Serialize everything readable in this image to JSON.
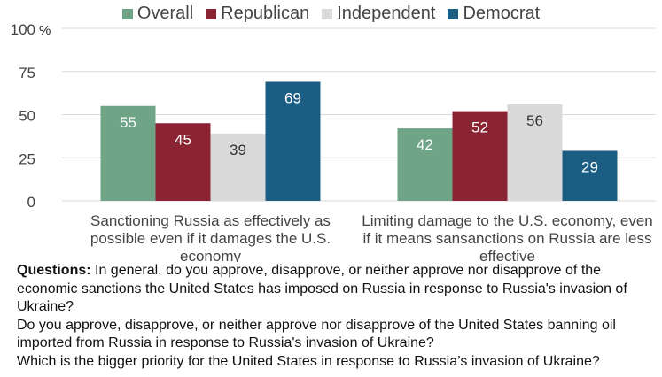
{
  "chart_data": {
    "type": "bar",
    "categories": [
      "Sanctioning Russia as effectively as possible even if it damages the U.S. economy",
      "Limiting damage to the U.S. economy, even if it means sansanctions on Russia are less effective"
    ],
    "category_lines": [
      [
        "Sanctioning Russia as effectively as",
        "possible even if it damages the U.S.",
        "economy"
      ],
      [
        "Limiting damage to the U.S. economy, even",
        "if it means sansanctions on Russia are less",
        "effective"
      ]
    ],
    "series": [
      {
        "name": "Overall",
        "values": [
          55,
          42
        ],
        "color": "#6fa487"
      },
      {
        "name": "Republican",
        "values": [
          45,
          52
        ],
        "color": "#8a2432"
      },
      {
        "name": "Independent",
        "values": [
          39,
          56
        ],
        "color": "#d9d9d9"
      },
      {
        "name": "Democrat",
        "values": [
          69,
          29
        ],
        "color": "#1c5e83"
      }
    ],
    "ylim": [
      0,
      100
    ],
    "yticks": [
      0,
      25,
      50,
      75,
      100
    ],
    "ylabel": "%",
    "grid": true,
    "legend_position": "top"
  },
  "notes": {
    "questions_label": "Questions:",
    "q1": "In general, do you approve, disapprove, or neither approve nor disapprove of the economic sanctions the United States has imposed on Russia in response to Russia's invasion of Ukraine?",
    "q2": "Do you approve, disapprove, or neither approve nor disapprove of the United States banning oil imported from Russia in response to Russia's invasion of Ukraine?",
    "q3": "Which is the bigger priority for the United States in response to Russia’s invasion of Ukraine?"
  }
}
